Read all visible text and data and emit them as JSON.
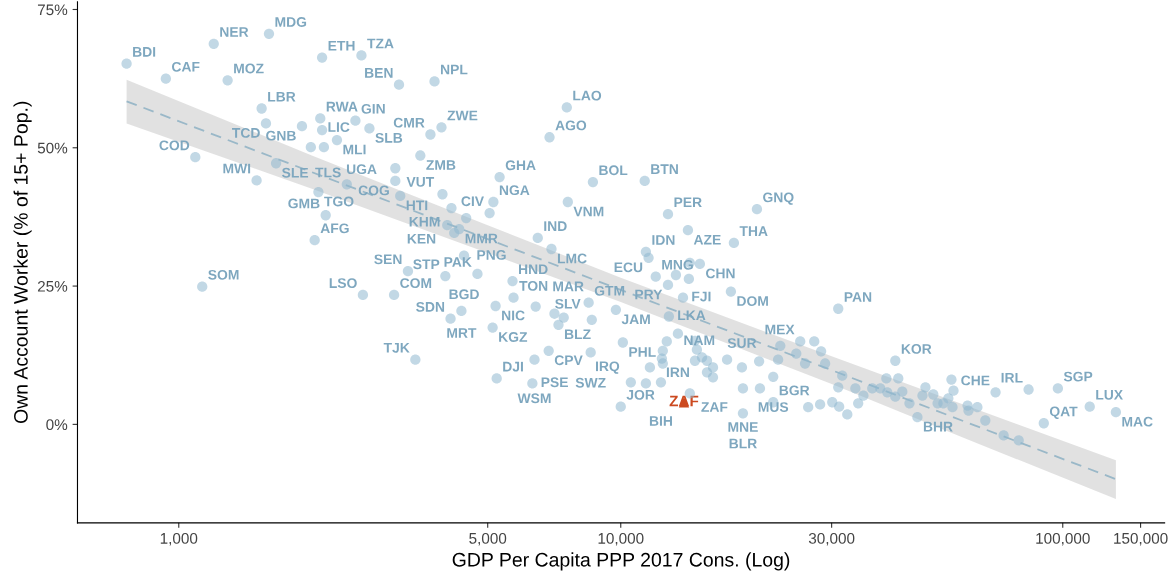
{
  "chart_data": {
    "type": "scatter",
    "xlabel": "GDP Per Capita PPP 2017 Cons. (Log)",
    "ylabel": "Own Account Worker (% of 15+ Pop.)",
    "log": "x",
    "grid": false,
    "legend": false,
    "marker": "circle",
    "xlim": [
      590,
      170000
    ],
    "ylim": [
      -17.8,
      76.4
    ],
    "xticks": [
      {
        "value": 1000,
        "label": "1,000"
      },
      {
        "value": 5000,
        "label": "5,000"
      },
      {
        "value": 10000,
        "label": "10,000"
      },
      {
        "value": 30000,
        "label": "30,000"
      },
      {
        "value": 100000,
        "label": "100,000"
      },
      {
        "value": 150000,
        "label": "150,000"
      }
    ],
    "yticks": [
      {
        "value": 0,
        "label": "0%"
      },
      {
        "value": 25,
        "label": "25%"
      },
      {
        "value": 50,
        "label": "50%"
      },
      {
        "value": 75,
        "label": "75%"
      }
    ],
    "series": [
      {
        "type": "line",
        "color": "#9ab8c8",
        "line_style": "dashed",
        "marker": "none",
        "x": [
          762,
          2000,
          5000,
          10000,
          30000,
          60000,
          131900
        ],
        "values": [
          58.4,
          45.6,
          33.5,
          24.3,
          9.8,
          0.5,
          -9.9
        ],
        "lower": [
          54.4,
          42.6,
          31.0,
          22.1,
          7.3,
          -2.5,
          -13.5
        ],
        "upper": [
          62.3,
          48.6,
          36.0,
          26.5,
          12.3,
          3.5,
          -6.5
        ]
      },
      {
        "color": "#8fb8cf",
        "x": [
          762,
          935,
          1200,
          1600,
          1290,
          2110,
          2590,
          3150,
          3790,
          1540,
          1575,
          2090,
          2510,
          2700,
          1900,
          2280,
          3710,
          3930,
          3520,
          1090,
          1660,
          1500,
          1990,
          2130,
          3090,
          3090,
          2400,
          2070,
          3170,
          4140,
          2150,
          2030,
          5150,
          5320,
          5050,
          7590,
          8650,
          11330,
          12790,
          20330,
          14190,
          18030,
          7550,
          6900,
          6490,
          6970,
          11400,
          11560,
          15100,
          4310,
          4050,
          4200,
          4420,
          4740,
          5690,
          5720,
          5210,
          6420,
          7230,
          4360,
          5130,
          8460,
          9750,
          8600,
          12850,
          13830,
          17750,
          12790,
          12000,
          10110,
          12710,
          13470,
          6870,
          8550,
          5240,
          6380,
          6310,
          10540,
          10000,
          12330,
          14330,
          18900,
          18900,
          22130,
          18800,
          22130,
          25470,
          31050,
          41800,
          70470,
          97500,
          83700,
          115100,
          131900,
          90600,
          46900,
          1130,
          2610,
          3070,
          3300,
          4010,
          4120,
          3430,
          2110,
          4470,
          3950,
          14330,
          13330,
          14260,
          7080,
          7430,
          11400,
          11640,
          12450,
          12390,
          12450,
          14720,
          14870,
          15270,
          14720,
          15670,
          16170,
          15670,
          16170,
          17400,
          20560,
          22700,
          22960,
          24950,
          26120,
          27400,
          26550,
          20650,
          28400,
          29000,
          31700,
          31050,
          33950,
          35400,
          30100,
          28250,
          31200,
          32550,
          34450,
          37070,
          38650,
          39900,
          42450,
          40090,
          41800,
          43350,
          45000,
          48900,
          48150,
          50950,
          52100,
          53700,
          55100,
          56600,
          56300,
          60900,
          61200,
          64100,
          66800,
          73500,
          79500,
          56000
        ],
        "values": [
          65.2,
          62.5,
          68.8,
          70.6,
          62.2,
          66.3,
          66.7,
          61.4,
          62.0,
          57.1,
          54.4,
          55.3,
          54.9,
          53.5,
          53.9,
          51.4,
          52.4,
          53.7,
          48.6,
          48.3,
          47.2,
          44.1,
          50.1,
          50.1,
          46.3,
          44.0,
          43.4,
          42.0,
          41.3,
          39.1,
          37.8,
          33.3,
          40.2,
          44.7,
          38.2,
          40.2,
          43.8,
          44.0,
          38.0,
          38.9,
          35.1,
          32.8,
          57.3,
          51.9,
          33.7,
          31.7,
          31.2,
          30.1,
          29.0,
          35.3,
          36.0,
          34.6,
          30.5,
          27.2,
          25.9,
          22.9,
          21.4,
          21.3,
          18.0,
          20.5,
          17.5,
          22.0,
          20.7,
          18.9,
          19.5,
          22.9,
          24.0,
          25.2,
          26.7,
          14.8,
          15.0,
          16.4,
          13.3,
          13.0,
          8.3,
          11.7,
          7.4,
          7.6,
          3.2,
          7.6,
          5.6,
          6.5,
          2.0,
          4.0,
          10.3,
          8.6,
          15.0,
          20.9,
          11.5,
          5.8,
          6.5,
          6.3,
          3.2,
          2.2,
          0.2,
          1.3,
          24.9,
          23.4,
          23.4,
          27.7,
          26.8,
          19.1,
          11.7,
          53.2,
          37.3,
          41.6,
          29.2,
          27.0,
          26.3,
          20.0,
          19.3,
          7.4,
          10.3,
          13.3,
          11.9,
          11.0,
          15.1,
          13.5,
          12.1,
          11.5,
          11.5,
          10.3,
          9.4,
          8.5,
          11.7,
          11.4,
          11.7,
          14.2,
          12.8,
          11.0,
          15.0,
          3.1,
          6.5,
          13.2,
          11.0,
          8.8,
          6.7,
          6.5,
          5.2,
          4.0,
          3.6,
          3.2,
          1.8,
          3.8,
          6.5,
          6.5,
          8.3,
          8.3,
          5.8,
          5.0,
          5.9,
          3.8,
          6.7,
          5.2,
          5.4,
          3.8,
          3.8,
          4.7,
          6.1,
          3.1,
          3.4,
          2.5,
          3.1,
          0.7,
          -2.0,
          -2.9,
          8.1
        ]
      },
      {
        "name": "ZAF",
        "color": "#cc4a20",
        "marker": "triangle",
        "x": [
          13900
        ],
        "values": [
          4.0
        ]
      }
    ],
    "annotations": [
      {
        "text": "BDI",
        "x": 762,
        "y": 65.2
      },
      {
        "text": "CAF",
        "x": 935,
        "y": 62.5
      },
      {
        "text": "NER",
        "x": 1200,
        "y": 68.8
      },
      {
        "text": "MDG",
        "x": 1600,
        "y": 70.6
      },
      {
        "text": "MOZ",
        "x": 1290,
        "y": 62.2
      },
      {
        "text": "ETH",
        "x": 2110,
        "y": 66.3
      },
      {
        "text": "TZA",
        "x": 2590,
        "y": 66.7
      },
      {
        "text": "BEN",
        "x": 3150,
        "y": 61.4
      },
      {
        "text": "NPL",
        "x": 3790,
        "y": 62.0
      },
      {
        "text": "LBR",
        "x": 1540,
        "y": 57.1
      },
      {
        "text": "TCD",
        "x": 1575,
        "y": 54.4
      },
      {
        "text": "RWA",
        "x": 2090,
        "y": 55.3
      },
      {
        "text": "GIN",
        "x": 2510,
        "y": 54.9
      },
      {
        "text": "SLB",
        "x": 2700,
        "y": 53.5
      },
      {
        "text": "GNB",
        "x": 1900,
        "y": 53.9
      },
      {
        "text": "MLI",
        "x": 2280,
        "y": 51.4
      },
      {
        "text": "CMR",
        "x": 3710,
        "y": 52.4
      },
      {
        "text": "ZWE",
        "x": 3930,
        "y": 53.7
      },
      {
        "text": "ZMB",
        "x": 3520,
        "y": 48.6
      },
      {
        "text": "COD",
        "x": 1090,
        "y": 48.3
      },
      {
        "text": "SLE",
        "x": 1660,
        "y": 47.2
      },
      {
        "text": "MWI",
        "x": 1500,
        "y": 44.1
      },
      {
        "text": "LIC",
        "x": 1990,
        "y": 50.1
      },
      {
        "text": "UGA",
        "x": 2130,
        "y": 50.1
      },
      {
        "text": "VUT",
        "x": 3090,
        "y": 46.3
      },
      {
        "text": "COG",
        "x": 3090,
        "y": 44.0
      },
      {
        "text": "TLS",
        "x": 2400,
        "y": 43.4
      },
      {
        "text": "TGO",
        "x": 2070,
        "y": 42.0
      },
      {
        "text": "HTI",
        "x": 3170,
        "y": 41.3
      },
      {
        "text": "KHM",
        "x": 4140,
        "y": 39.1
      },
      {
        "text": "GMB",
        "x": 2150,
        "y": 37.8
      },
      {
        "text": "AFG",
        "x": 2030,
        "y": 33.3
      },
      {
        "text": "NGA",
        "x": 5150,
        "y": 40.2
      },
      {
        "text": "GHA",
        "x": 5320,
        "y": 44.7
      },
      {
        "text": "CIV",
        "x": 5050,
        "y": 38.2
      },
      {
        "text": "VNM",
        "x": 7590,
        "y": 40.2
      },
      {
        "text": "BOL",
        "x": 8650,
        "y": 43.8
      },
      {
        "text": "BTN",
        "x": 11330,
        "y": 44.0
      },
      {
        "text": "PER",
        "x": 12790,
        "y": 38.0
      },
      {
        "text": "GNQ",
        "x": 20330,
        "y": 38.9
      },
      {
        "text": "AZE",
        "x": 14190,
        "y": 35.1
      },
      {
        "text": "THA",
        "x": 18030,
        "y": 32.8
      },
      {
        "text": "LAO",
        "x": 7550,
        "y": 57.3
      },
      {
        "text": "AGO",
        "x": 6900,
        "y": 51.9
      },
      {
        "text": "IND",
        "x": 6490,
        "y": 33.7
      },
      {
        "text": "LMC",
        "x": 6970,
        "y": 31.7
      },
      {
        "text": "IDN",
        "x": 11400,
        "y": 31.2
      },
      {
        "text": "ECU",
        "x": 11560,
        "y": 30.1
      },
      {
        "text": "CHN",
        "x": 15100,
        "y": 29.0
      },
      {
        "text": "MMR",
        "x": 4310,
        "y": 35.3
      },
      {
        "text": "KEN",
        "x": 4050,
        "y": 36.0
      },
      {
        "text": "PNG",
        "x": 4200,
        "y": 34.6
      },
      {
        "text": "BGD",
        "x": 4420,
        "y": 30.5
      },
      {
        "text": "PAK",
        "x": 4740,
        "y": 27.2
      },
      {
        "text": "HND",
        "x": 5690,
        "y": 25.9
      },
      {
        "text": "TON",
        "x": 5720,
        "y": 22.9
      },
      {
        "text": "NIC",
        "x": 5210,
        "y": 21.4
      },
      {
        "text": "MAR",
        "x": 6420,
        "y": 21.3
      },
      {
        "text": "BLZ",
        "x": 7230,
        "y": 18.0
      },
      {
        "text": "MRT",
        "x": 4360,
        "y": 20.5
      },
      {
        "text": "KGZ",
        "x": 5130,
        "y": 17.5
      },
      {
        "text": "GTM",
        "x": 8460,
        "y": 22.0
      },
      {
        "text": "JAM",
        "x": 9750,
        "y": 20.7
      },
      {
        "text": "SLV",
        "x": 8600,
        "y": 18.9
      },
      {
        "text": "LKA",
        "x": 12850,
        "y": 19.5
      },
      {
        "text": "FJI",
        "x": 13830,
        "y": 22.9
      },
      {
        "text": "DOM",
        "x": 17750,
        "y": 24.0
      },
      {
        "text": "PRY",
        "x": 12790,
        "y": 25.2
      },
      {
        "text": "MNG",
        "x": 12000,
        "y": 26.7
      },
      {
        "text": "PHL",
        "x": 10110,
        "y": 14.8
      },
      {
        "text": "NAM",
        "x": 12710,
        "y": 15.0
      },
      {
        "text": "IRN",
        "x": 13470,
        "y": 16.4
      },
      {
        "text": "CPV",
        "x": 6870,
        "y": 13.3
      },
      {
        "text": "SWZ",
        "x": 8550,
        "y": 13.0
      },
      {
        "text": "DJI",
        "x": 5240,
        "y": 8.3
      },
      {
        "text": "WSM",
        "x": 6380,
        "y": 11.7
      },
      {
        "text": "PSE",
        "x": 6310,
        "y": 7.4
      },
      {
        "text": "IRQ",
        "x": 10540,
        "y": 7.6
      },
      {
        "text": "JOR",
        "x": 10000,
        "y": 3.2
      },
      {
        "text": "BIH",
        "x": 12330,
        "y": 7.6
      },
      {
        "text": "ZAF",
        "x": 14330,
        "y": 5.6
      },
      {
        "text": "MNE",
        "x": 18900,
        "y": 6.5
      },
      {
        "text": "BLR",
        "x": 18900,
        "y": 2.0
      },
      {
        "text": "BGR",
        "x": 22130,
        "y": 4.0
      },
      {
        "text": "SUR",
        "x": 18800,
        "y": 10.3
      },
      {
        "text": "MUS",
        "x": 22130,
        "y": 8.6
      },
      {
        "text": "MEX",
        "x": 25470,
        "y": 15.0
      },
      {
        "text": "PAN",
        "x": 31050,
        "y": 20.9
      },
      {
        "text": "KOR",
        "x": 41800,
        "y": 11.5
      },
      {
        "text": "CHE",
        "x": 70470,
        "y": 5.8
      },
      {
        "text": "SGP",
        "x": 97500,
        "y": 6.5
      },
      {
        "text": "IRL",
        "x": 83700,
        "y": 6.3
      },
      {
        "text": "LUX",
        "x": 115100,
        "y": 3.2
      },
      {
        "text": "MAC",
        "x": 131900,
        "y": 2.2
      },
      {
        "text": "QAT",
        "x": 90600,
        "y": 0.2
      },
      {
        "text": "BHR",
        "x": 46900,
        "y": 1.3
      },
      {
        "text": "SOM",
        "x": 1130,
        "y": 24.9
      },
      {
        "text": "LSO",
        "x": 2610,
        "y": 23.4
      },
      {
        "text": "COM",
        "x": 3070,
        "y": 23.4
      },
      {
        "text": "SEN",
        "x": 3300,
        "y": 27.7
      },
      {
        "text": "STP",
        "x": 4010,
        "y": 26.8
      },
      {
        "text": "SDN",
        "x": 4120,
        "y": 19.1
      },
      {
        "text": "TJK",
        "x": 3430,
        "y": 11.7
      }
    ]
  }
}
